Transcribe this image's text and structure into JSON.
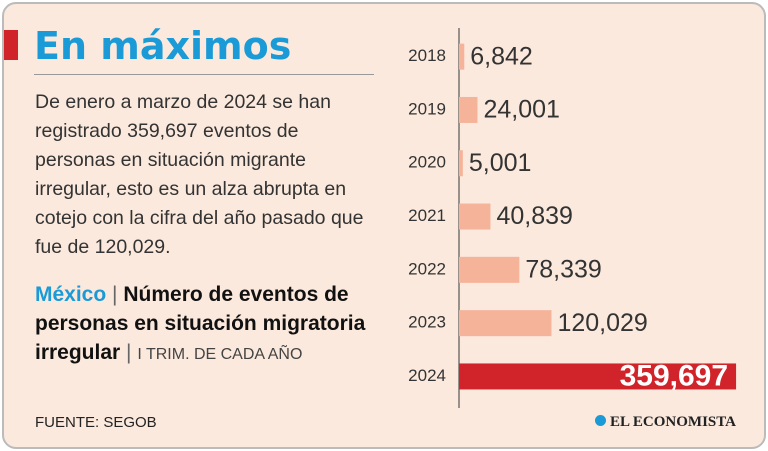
{
  "title": "En máximos",
  "description": "De enero a marzo de 2024 se han registrado 359,697 eventos de personas en situación migrante irregular, esto es un alza abrupta en cotejo con la cifra del año pasado que fue de 120,029.",
  "subtitle": {
    "region": "México",
    "main": "Número de eventos de personas en situación migratoria irregular",
    "note": "I TRIM. DE CADA AÑO"
  },
  "source": "FUENTE: SEGOB",
  "brand": "EL ECONOMISTA",
  "chart_data": {
    "type": "bar",
    "orientation": "horizontal",
    "categories": [
      "2018",
      "2019",
      "2020",
      "2021",
      "2022",
      "2023",
      "2024"
    ],
    "values": [
      6842,
      24001,
      5001,
      40839,
      78339,
      120029,
      359697
    ],
    "value_labels": [
      "6,842",
      "24,001",
      "5,001",
      "40,839",
      "78,339",
      "120,029",
      "359,697"
    ],
    "colors": [
      "#f5b39a",
      "#f5b39a",
      "#f5b39a",
      "#f5b39a",
      "#f5b39a",
      "#f5b39a",
      "#d1232a"
    ],
    "xlim": [
      0,
      370000
    ]
  }
}
